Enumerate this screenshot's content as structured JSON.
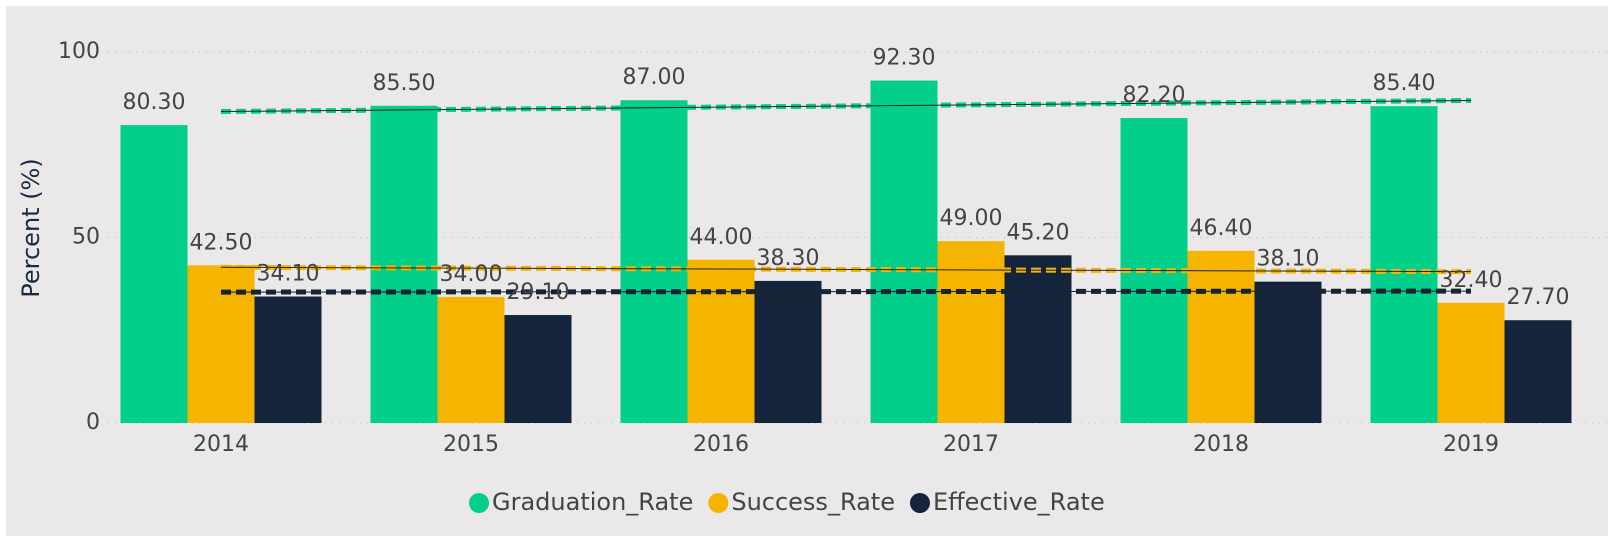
{
  "chart_data": {
    "type": "bar",
    "y_label": "Percent (%)",
    "categories": [
      "2014",
      "2015",
      "2016",
      "2017",
      "2018",
      "2019"
    ],
    "series": [
      {
        "name": "Graduation_Rate",
        "color": "#01cf8a",
        "values": [
          80.3,
          85.5,
          87.0,
          92.3,
          82.2,
          85.4
        ],
        "value_labels": [
          "80.30",
          "85.50",
          "87.00",
          "92.30",
          "82.20",
          "85.40"
        ]
      },
      {
        "name": "Success_Rate",
        "color": "#f5b400",
        "values": [
          42.5,
          34.0,
          44.0,
          49.0,
          46.4,
          32.4
        ],
        "value_labels": [
          "42.50",
          "34.00",
          "44.00",
          "49.00",
          "46.40",
          "32.40"
        ]
      },
      {
        "name": "Effective_Rate",
        "color": "#14243a",
        "values": [
          34.1,
          29.1,
          38.3,
          45.2,
          38.1,
          27.7
        ],
        "value_labels": [
          "34.10",
          "29.10",
          "38.30",
          "45.20",
          "38.10",
          "27.70"
        ]
      }
    ],
    "ylim": [
      0,
      100
    ],
    "yticks": [
      0,
      50,
      100
    ],
    "grid": true,
    "trendline": true,
    "legend": "bottom"
  }
}
